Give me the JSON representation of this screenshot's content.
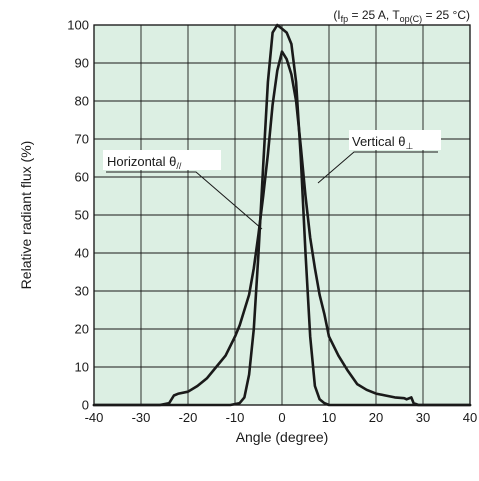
{
  "chart_data": {
    "type": "line",
    "title": "",
    "conditions": {
      "prefix": "(I",
      "i_sub": "fp",
      "middle": " = 25 A, T",
      "t_sub": "op(C)",
      "suffix": " = 25 °C)"
    },
    "xlabel": "Angle (degree)",
    "ylabel": "Relative radiant flux (%)",
    "xlim": [
      -40,
      40
    ],
    "ylim": [
      0,
      100
    ],
    "xticks": [
      -40,
      -30,
      -20,
      -10,
      0,
      10,
      20,
      30,
      40
    ],
    "yticks": [
      0,
      10,
      20,
      30,
      40,
      50,
      60,
      70,
      80,
      90,
      100
    ],
    "grid": true,
    "plot_background": "#dcefe3",
    "line_color": "#1a1a1a",
    "series": [
      {
        "name": "Vertical θ⊥",
        "label_main": "Vertical θ",
        "label_sub": "⊥",
        "x": [
          -40,
          -26,
          -24,
          -23,
          -22,
          -20,
          -18,
          -16,
          -14,
          -12,
          -10,
          -9,
          -8,
          -7,
          -6,
          -5,
          -4,
          -3,
          -2,
          -1,
          0,
          1,
          2,
          3,
          4,
          5,
          6,
          7,
          8,
          9,
          10,
          12,
          14,
          16,
          18,
          20,
          22,
          24,
          26,
          26.5,
          27.5,
          28,
          29,
          40
        ],
        "y": [
          0,
          0,
          0.5,
          2.5,
          3,
          3.5,
          5,
          7,
          10,
          13,
          18,
          21,
          25,
          29,
          36,
          45,
          55,
          66,
          79,
          88,
          93,
          91,
          87,
          80,
          68,
          55,
          44,
          36,
          29,
          24,
          18,
          13,
          9,
          5.5,
          4,
          3,
          2.5,
          2,
          1.8,
          1.5,
          2,
          0.5,
          0,
          0
        ]
      },
      {
        "name": "Horizontal θ//",
        "label_main": "Horizontal θ",
        "label_sub": "//",
        "x": [
          -40,
          -11,
          -9,
          -8,
          -7,
          -6,
          -5,
          -4,
          -3,
          -2,
          -1,
          0,
          1,
          2,
          3,
          4,
          5,
          6,
          7,
          8,
          9,
          10,
          40
        ],
        "y": [
          0,
          0,
          0.5,
          2,
          8,
          20,
          40,
          63,
          85,
          98,
          100,
          99,
          98,
          95,
          85,
          65,
          40,
          18,
          5,
          1.5,
          0.5,
          0,
          0
        ]
      }
    ]
  }
}
